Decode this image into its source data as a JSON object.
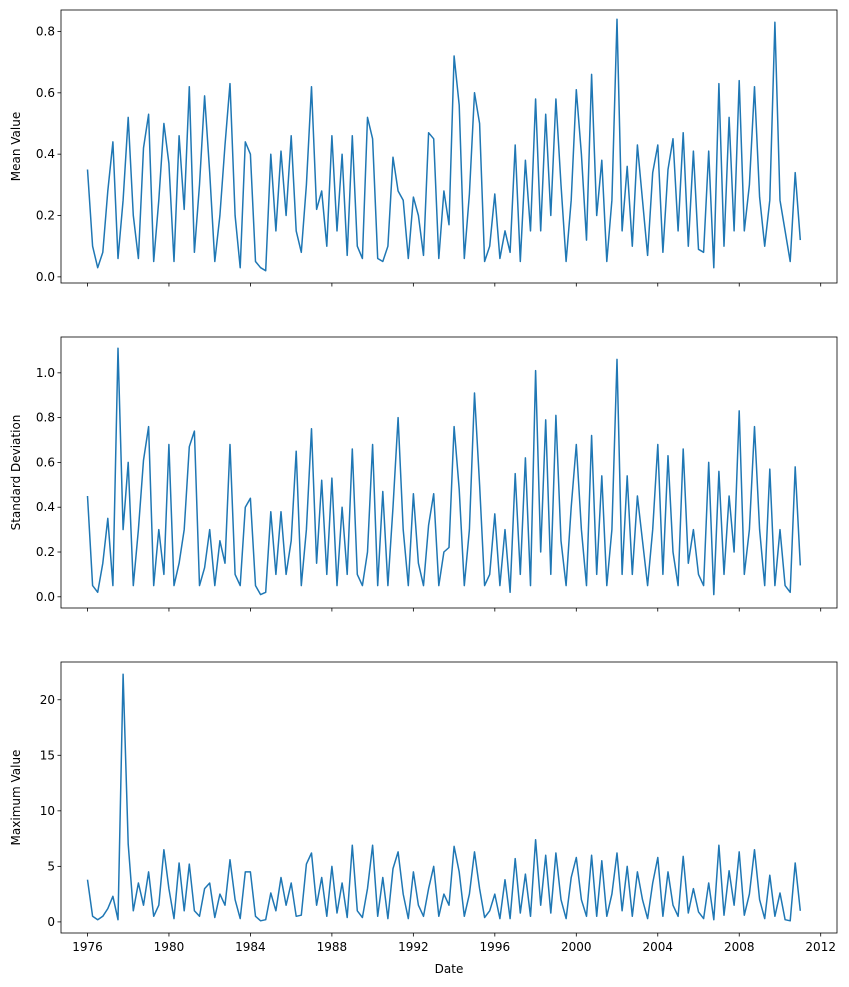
{
  "chart_data": [
    {
      "type": "line",
      "title": "",
      "xlabel": "",
      "ylabel": "Mean Value",
      "ylim": [
        -0.02,
        0.87
      ],
      "yticks": [
        0.0,
        0.2,
        0.4,
        0.6,
        0.8
      ],
      "ytick_labels": [
        "0.0",
        "0.2",
        "0.4",
        "0.6",
        "0.8"
      ],
      "x_start": 1976.0,
      "x_step_years": 0.25,
      "color": "#1f77b4",
      "values": [
        0.35,
        0.1,
        0.03,
        0.08,
        0.28,
        0.44,
        0.06,
        0.25,
        0.52,
        0.2,
        0.06,
        0.42,
        0.53,
        0.05,
        0.25,
        0.5,
        0.37,
        0.05,
        0.46,
        0.22,
        0.62,
        0.08,
        0.3,
        0.59,
        0.34,
        0.05,
        0.2,
        0.43,
        0.63,
        0.2,
        0.03,
        0.44,
        0.4,
        0.05,
        0.03,
        0.02,
        0.4,
        0.15,
        0.41,
        0.2,
        0.46,
        0.15,
        0.08,
        0.3,
        0.62,
        0.22,
        0.28,
        0.1,
        0.46,
        0.15,
        0.4,
        0.07,
        0.46,
        0.1,
        0.06,
        0.52,
        0.45,
        0.06,
        0.05,
        0.1,
        0.39,
        0.28,
        0.25,
        0.06,
        0.26,
        0.2,
        0.07,
        0.47,
        0.45,
        0.06,
        0.28,
        0.17,
        0.72,
        0.56,
        0.06,
        0.27,
        0.6,
        0.5,
        0.05,
        0.1,
        0.27,
        0.06,
        0.15,
        0.08,
        0.43,
        0.05,
        0.38,
        0.15,
        0.58,
        0.15,
        0.53,
        0.2,
        0.58,
        0.3,
        0.05,
        0.25,
        0.61,
        0.4,
        0.12,
        0.66,
        0.2,
        0.38,
        0.05,
        0.25,
        0.84,
        0.15,
        0.36,
        0.1,
        0.43,
        0.25,
        0.07,
        0.34,
        0.43,
        0.08,
        0.35,
        0.45,
        0.15,
        0.47,
        0.1,
        0.41,
        0.09,
        0.08,
        0.41,
        0.03,
        0.63,
        0.1,
        0.52,
        0.15,
        0.64,
        0.15,
        0.3,
        0.62,
        0.26,
        0.1,
        0.25,
        0.83,
        0.25,
        0.15,
        0.05,
        0.34,
        0.12
      ]
    },
    {
      "type": "line",
      "title": "",
      "xlabel": "",
      "ylabel": "Standard Deviation",
      "ylim": [
        -0.05,
        1.16
      ],
      "yticks": [
        0.0,
        0.2,
        0.4,
        0.6,
        0.8,
        1.0
      ],
      "ytick_labels": [
        "0.0",
        "0.2",
        "0.4",
        "0.6",
        "0.8",
        "1.0"
      ],
      "x_start": 1976.0,
      "x_step_years": 0.25,
      "color": "#1f77b4",
      "values": [
        0.45,
        0.05,
        0.02,
        0.15,
        0.35,
        0.05,
        1.11,
        0.3,
        0.6,
        0.05,
        0.3,
        0.61,
        0.76,
        0.05,
        0.3,
        0.1,
        0.68,
        0.05,
        0.15,
        0.3,
        0.67,
        0.74,
        0.05,
        0.13,
        0.3,
        0.05,
        0.25,
        0.15,
        0.68,
        0.1,
        0.05,
        0.4,
        0.44,
        0.05,
        0.01,
        0.02,
        0.38,
        0.1,
        0.38,
        0.1,
        0.25,
        0.65,
        0.05,
        0.3,
        0.75,
        0.15,
        0.52,
        0.1,
        0.53,
        0.05,
        0.4,
        0.1,
        0.66,
        0.1,
        0.05,
        0.2,
        0.68,
        0.05,
        0.47,
        0.05,
        0.4,
        0.8,
        0.3,
        0.05,
        0.46,
        0.15,
        0.05,
        0.32,
        0.46,
        0.05,
        0.2,
        0.22,
        0.76,
        0.48,
        0.05,
        0.3,
        0.91,
        0.5,
        0.05,
        0.1,
        0.37,
        0.05,
        0.3,
        0.02,
        0.55,
        0.1,
        0.62,
        0.05,
        1.01,
        0.2,
        0.79,
        0.1,
        0.81,
        0.25,
        0.05,
        0.4,
        0.68,
        0.3,
        0.05,
        0.72,
        0.1,
        0.54,
        0.05,
        0.3,
        1.06,
        0.1,
        0.54,
        0.1,
        0.45,
        0.25,
        0.05,
        0.3,
        0.68,
        0.1,
        0.63,
        0.2,
        0.05,
        0.66,
        0.15,
        0.3,
        0.1,
        0.05,
        0.6,
        0.01,
        0.56,
        0.1,
        0.45,
        0.2,
        0.83,
        0.1,
        0.3,
        0.76,
        0.3,
        0.05,
        0.57,
        0.05,
        0.3,
        0.05,
        0.02,
        0.58,
        0.14
      ]
    },
    {
      "type": "line",
      "title": "",
      "xlabel": "Date",
      "ylabel": "Maximum Value",
      "ylim": [
        -1.0,
        23.4
      ],
      "yticks": [
        0,
        5,
        10,
        15,
        20
      ],
      "ytick_labels": [
        "0",
        "5",
        "10",
        "15",
        "20"
      ],
      "x_start": 1976.0,
      "x_step_years": 0.25,
      "color": "#1f77b4",
      "values": [
        3.8,
        0.5,
        0.2,
        0.5,
        1.2,
        2.3,
        0.2,
        22.3,
        7.0,
        1.0,
        3.5,
        1.5,
        4.5,
        0.5,
        1.5,
        6.5,
        3.0,
        0.3,
        5.3,
        1.0,
        5.2,
        1.0,
        0.5,
        3.0,
        3.5,
        0.4,
        2.5,
        1.5,
        5.6,
        2.0,
        0.3,
        4.5,
        4.5,
        0.5,
        0.1,
        0.2,
        2.6,
        1.0,
        4.0,
        1.5,
        3.5,
        0.5,
        0.6,
        5.2,
        6.2,
        1.5,
        4.0,
        0.5,
        5.0,
        0.8,
        3.5,
        0.4,
        6.9,
        1.0,
        0.4,
        3.0,
        6.9,
        0.5,
        4.0,
        0.3,
        4.8,
        6.3,
        2.5,
        0.3,
        4.5,
        1.5,
        0.5,
        3.0,
        5.0,
        0.5,
        2.5,
        1.5,
        6.8,
        4.5,
        0.5,
        2.5,
        6.3,
        3.0,
        0.4,
        1.0,
        2.5,
        0.3,
        3.8,
        0.3,
        5.7,
        0.8,
        4.3,
        0.5,
        7.4,
        1.5,
        6.0,
        0.8,
        6.2,
        2.0,
        0.3,
        4.0,
        5.8,
        2.0,
        0.5,
        6.0,
        0.5,
        5.5,
        0.5,
        2.5,
        6.2,
        1.0,
        5.0,
        0.5,
        4.5,
        2.0,
        0.3,
        3.5,
        5.8,
        0.5,
        4.5,
        1.5,
        0.5,
        5.9,
        0.8,
        3.0,
        0.9,
        0.3,
        3.5,
        0.2,
        6.9,
        0.6,
        4.6,
        1.5,
        6.3,
        0.6,
        2.5,
        6.5,
        2.0,
        0.3,
        4.2,
        0.5,
        2.6,
        0.2,
        0.1,
        5.3,
        1.0
      ]
    }
  ],
  "shared_x": {
    "xlim": [
      1974.7,
      2012.8
    ],
    "xticks": [
      1976,
      1980,
      1984,
      1988,
      1992,
      1996,
      2000,
      2004,
      2008,
      2012
    ],
    "xtick_labels": [
      "1976",
      "1980",
      "1984",
      "1988",
      "1992",
      "1996",
      "2000",
      "2004",
      "2008",
      "2012"
    ],
    "xlabel": "Date"
  }
}
